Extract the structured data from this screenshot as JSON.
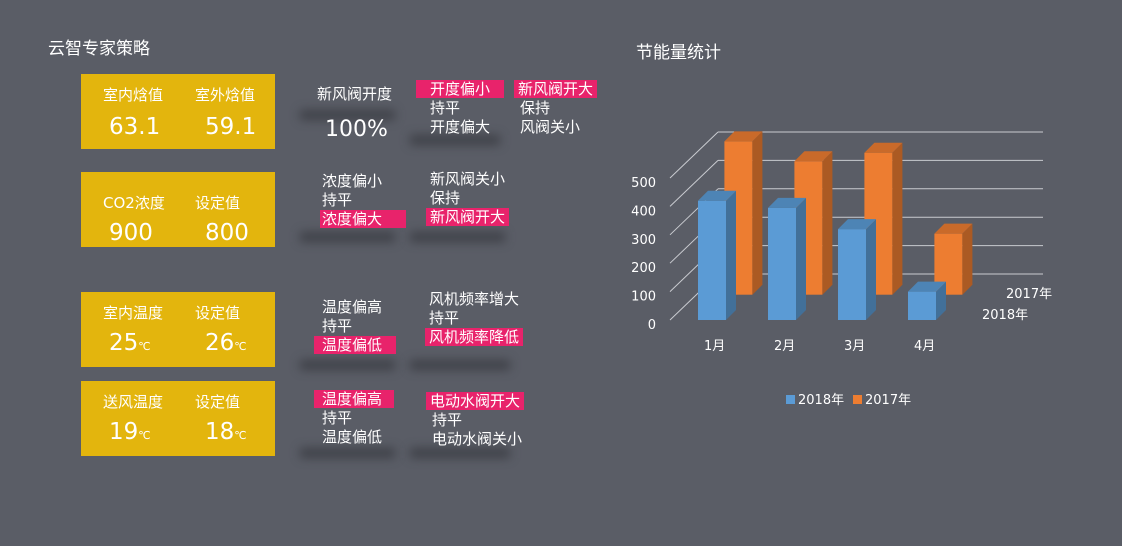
{
  "left_panel": {
    "title": "云智专家策略",
    "cards": [
      {
        "label_a": "室内焓值",
        "value_a": "63.1",
        "label_b": "室外焓值",
        "value_b": "59.1",
        "unit": ""
      },
      {
        "label_a": "CO2浓度",
        "value_a": "900",
        "label_b": "设定值",
        "value_b": "800",
        "unit": ""
      },
      {
        "label_a": "室内温度",
        "value_a": "25",
        "label_b": "设定值",
        "value_b": "26",
        "unit": "℃"
      },
      {
        "label_a": "送风温度",
        "value_a": "19",
        "label_b": "设定值",
        "value_b": "18",
        "unit": "℃"
      }
    ]
  },
  "strategy": {
    "row1": {
      "label": "新风阀开度",
      "value": "100%",
      "condition": [
        "开度偏小",
        "持平",
        "开度偏大"
      ],
      "action": [
        "新风阀开大",
        "保持",
        "风阀关小"
      ]
    },
    "row2": {
      "condition": [
        "浓度偏小",
        "持平",
        "浓度偏大"
      ],
      "action": [
        "新风阀关小",
        "保持",
        "新风阀开大"
      ]
    },
    "row3": {
      "condition": [
        "温度偏高",
        "持平",
        "温度偏低"
      ],
      "action": [
        "风机频率增大",
        "持平",
        "风机频率降低"
      ]
    },
    "row4": {
      "condition": [
        "温度偏高",
        "持平",
        "温度偏低"
      ],
      "action": [
        "电动水阀开大",
        "持平",
        "电动水阀关小"
      ]
    }
  },
  "colors": {
    "background": "#5a5d66",
    "card": "#e3b50d",
    "highlight": "#e8236b",
    "series_2018": "#5b9bd5",
    "series_2017": "#ed7d31"
  },
  "chart_data": {
    "type": "bar",
    "title": "节能量统计",
    "categories": [
      "1月",
      "2月",
      "3月",
      "4月"
    ],
    "series": [
      {
        "name": "2018年",
        "values": [
          420,
          395,
          320,
          100
        ]
      },
      {
        "name": "2017年",
        "values": [
          540,
          470,
          500,
          215
        ]
      }
    ],
    "yticks": [
      "0",
      "100",
      "200",
      "300",
      "400",
      "500"
    ],
    "depth_labels": [
      "2017年",
      "2018年"
    ],
    "ylim": [
      0,
      500
    ],
    "legend": "bottom",
    "grid": true
  }
}
